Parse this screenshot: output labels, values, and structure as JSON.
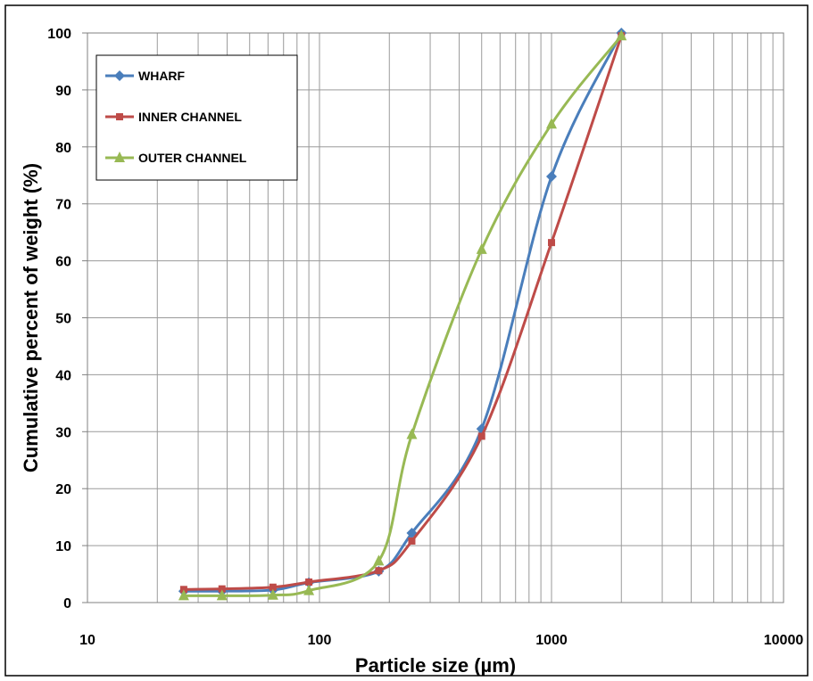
{
  "chart_data": {
    "type": "line",
    "xlabel": "Particle size (µm)",
    "ylabel": "Cumulative percent of weight (%)",
    "x_scale": "log",
    "xlim": [
      10,
      10000
    ],
    "ylim": [
      0,
      100
    ],
    "x_ticks": [
      "10",
      "100",
      "1000",
      "10000"
    ],
    "y_ticks": [
      "0",
      "10",
      "20",
      "30",
      "40",
      "50",
      "60",
      "70",
      "80",
      "90",
      "100"
    ],
    "grid": true,
    "legend_position": "top-left",
    "series": [
      {
        "name": "WHARF",
        "color": "#4a7ebb",
        "marker": "diamond",
        "x": [
          26,
          38,
          63,
          90,
          180,
          250,
          500,
          1000,
          2000
        ],
        "y": [
          2.0,
          2.0,
          2.2,
          3.5,
          5.5,
          12.2,
          30.5,
          74.8,
          100
        ]
      },
      {
        "name": "INNER CHANNEL",
        "color": "#be4b48",
        "marker": "square",
        "x": [
          26,
          38,
          63,
          90,
          180,
          250,
          500,
          1000,
          2000
        ],
        "y": [
          2.3,
          2.4,
          2.7,
          3.6,
          5.6,
          10.8,
          29.2,
          63.2,
          99.5
        ]
      },
      {
        "name": "OUTER CHANNEL",
        "color": "#98b954",
        "marker": "triangle",
        "x": [
          26,
          38,
          63,
          90,
          180,
          250,
          500,
          1000,
          2000
        ],
        "y": [
          1.2,
          1.2,
          1.3,
          2.1,
          7.3,
          29.5,
          62,
          84,
          99.5
        ]
      }
    ]
  }
}
